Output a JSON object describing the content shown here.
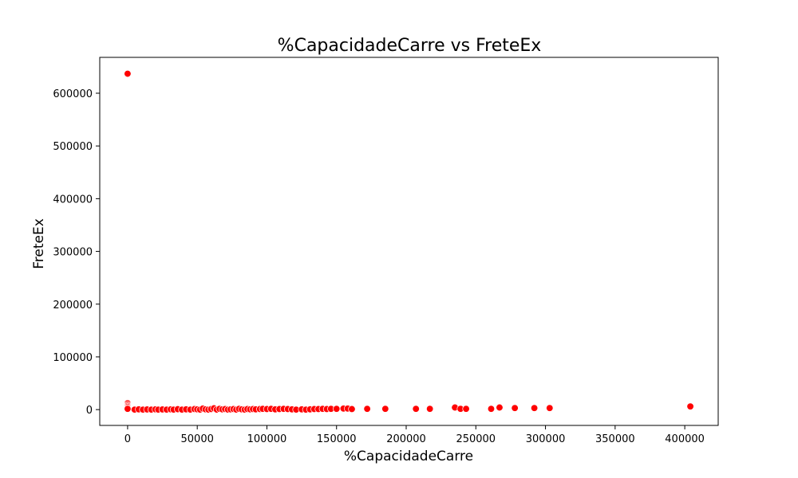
{
  "chart_data": {
    "type": "scatter",
    "title": "%CapacidadeCarre vs FreteEx",
    "xlabel": "%CapacidadeCarre",
    "ylabel": "FreteEx",
    "xlim": [
      -20000,
      424000
    ],
    "ylim": [
      -30000,
      668000
    ],
    "xticks": [
      0,
      50000,
      100000,
      150000,
      200000,
      250000,
      300000,
      350000,
      400000
    ],
    "xtick_labels": [
      "0",
      "50000",
      "100000",
      "150000",
      "200000",
      "250000",
      "300000",
      "350000",
      "400000"
    ],
    "yticks": [
      0,
      100000,
      200000,
      300000,
      400000,
      500000,
      600000
    ],
    "ytick_labels": [
      "0",
      "100000",
      "200000",
      "300000",
      "400000",
      "500000",
      "600000"
    ],
    "grid": false,
    "legend": "none",
    "marker_color": "#ff0000",
    "marker_edge_color": "#ffffff",
    "series": [
      {
        "points": [
          [
            0,
            637000
          ],
          [
            0,
            12000
          ],
          [
            0,
            9000
          ],
          [
            0,
            7000
          ],
          [
            0,
            5000
          ],
          [
            0,
            3000
          ],
          [
            0,
            1500
          ],
          [
            5000,
            0
          ],
          [
            8000,
            500
          ],
          [
            11000,
            0
          ],
          [
            14000,
            300
          ],
          [
            17000,
            0
          ],
          [
            20000,
            500
          ],
          [
            22000,
            0
          ],
          [
            25000,
            300
          ],
          [
            28000,
            0
          ],
          [
            31000,
            500
          ],
          [
            33000,
            0
          ],
          [
            36000,
            800
          ],
          [
            39000,
            0
          ],
          [
            42000,
            500
          ],
          [
            45000,
            0
          ],
          [
            48000,
            1000
          ],
          [
            50000,
            500
          ],
          [
            52000,
            0
          ],
          [
            54000,
            2000
          ],
          [
            56000,
            500
          ],
          [
            58000,
            0
          ],
          [
            60000,
            1000
          ],
          [
            62000,
            2500
          ],
          [
            64000,
            0
          ],
          [
            66000,
            1500
          ],
          [
            68000,
            500
          ],
          [
            70000,
            1000
          ],
          [
            72000,
            0
          ],
          [
            74000,
            500
          ],
          [
            76000,
            1000
          ],
          [
            78000,
            0
          ],
          [
            80000,
            1500
          ],
          [
            82000,
            500
          ],
          [
            84000,
            0
          ],
          [
            86000,
            1000
          ],
          [
            88000,
            500
          ],
          [
            90000,
            1000
          ],
          [
            92000,
            500
          ],
          [
            95000,
            1000
          ],
          [
            97000,
            1500
          ],
          [
            100000,
            1000
          ],
          [
            103000,
            1500
          ],
          [
            106000,
            500
          ],
          [
            109000,
            1000
          ],
          [
            112000,
            1500
          ],
          [
            115000,
            1000
          ],
          [
            118000,
            500
          ],
          [
            121000,
            0
          ],
          [
            125000,
            500
          ],
          [
            128000,
            0
          ],
          [
            131000,
            500
          ],
          [
            134000,
            1000
          ],
          [
            137000,
            1000
          ],
          [
            140000,
            1500
          ],
          [
            143000,
            1000
          ],
          [
            146000,
            1500
          ],
          [
            150000,
            1500
          ],
          [
            155000,
            2000
          ],
          [
            158000,
            2000
          ],
          [
            161000,
            1000
          ],
          [
            172000,
            1500
          ],
          [
            185000,
            1500
          ],
          [
            207000,
            1500
          ],
          [
            217000,
            1500
          ],
          [
            235000,
            4000
          ],
          [
            239000,
            1500
          ],
          [
            243000,
            1500
          ],
          [
            261000,
            1500
          ],
          [
            267000,
            4000
          ],
          [
            278000,
            3000
          ],
          [
            292000,
            3000
          ],
          [
            303000,
            3000
          ],
          [
            404000,
            6000
          ]
        ]
      }
    ]
  }
}
